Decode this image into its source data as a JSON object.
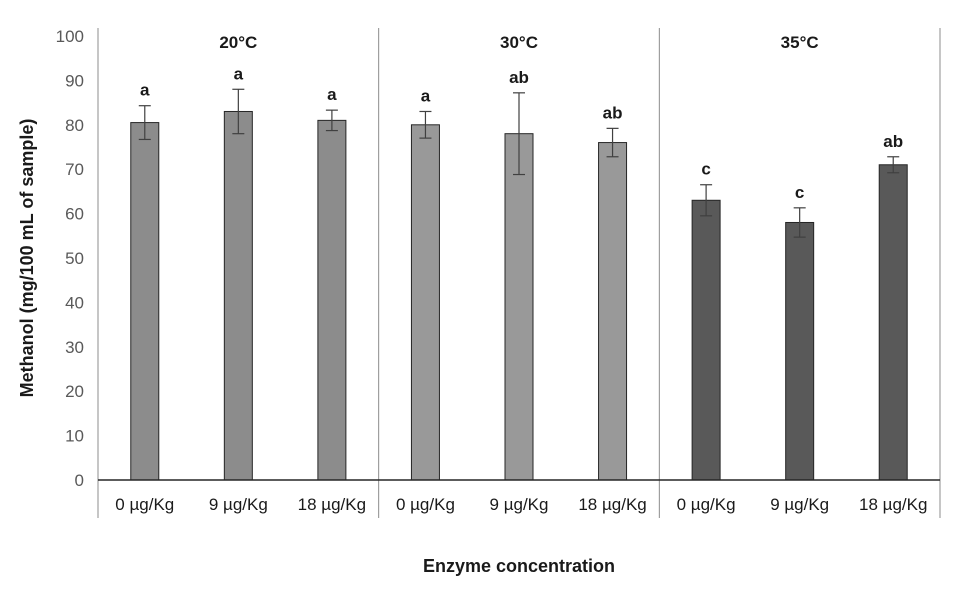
{
  "chart_data": {
    "type": "bar",
    "xlabel": "Enzyme concentration",
    "ylabel": "Methanol (mg/100 mL of sample)",
    "ylim": [
      0,
      100
    ],
    "yticks": [
      0,
      10,
      20,
      30,
      40,
      50,
      60,
      70,
      80,
      90,
      100
    ],
    "grid": false,
    "groups": [
      {
        "title": "20°C",
        "color": "#8c8c8c",
        "categories": [
          "0 µg/Kg",
          "9 µg/Kg",
          "18 µg/Kg"
        ],
        "values": [
          80.5,
          83.0,
          81.0
        ],
        "errors": [
          3.8,
          5.0,
          2.3
        ],
        "labels": [
          "a",
          "a",
          "a"
        ]
      },
      {
        "title": "30°C",
        "color": "#999999",
        "categories": [
          "0 µg/Kg",
          "9 µg/Kg",
          "18 µg/Kg"
        ],
        "values": [
          80.0,
          78.0,
          76.0
        ],
        "errors": [
          3.0,
          9.2,
          3.2
        ],
        "labels": [
          "a",
          "ab",
          "ab"
        ]
      },
      {
        "title": "35°C",
        "color": "#595959",
        "categories": [
          "0 µg/Kg",
          "9 µg/Kg",
          "18 µg/Kg"
        ],
        "values": [
          63.0,
          58.0,
          71.0
        ],
        "errors": [
          3.5,
          3.3,
          1.8
        ],
        "labels": [
          "c",
          "c",
          "ab"
        ]
      }
    ]
  }
}
